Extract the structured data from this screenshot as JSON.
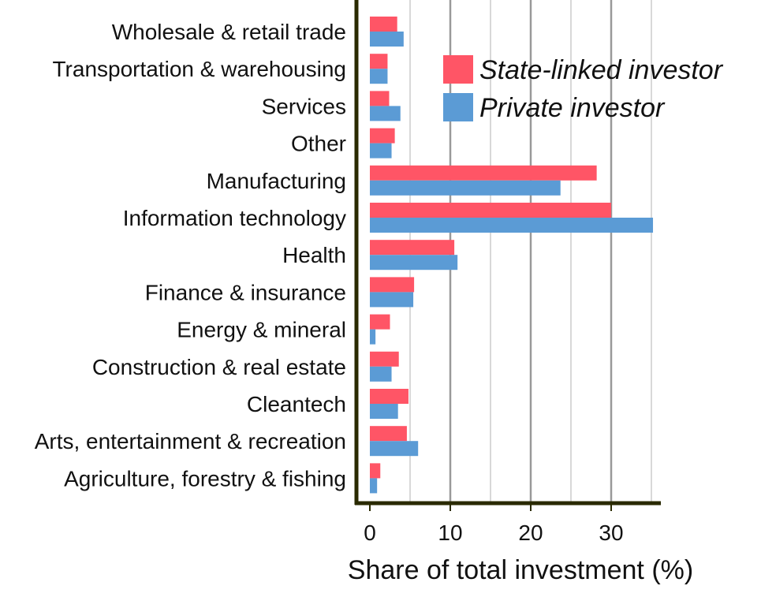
{
  "chart_data": {
    "type": "bar",
    "orientation": "horizontal",
    "title": "",
    "xlabel": "Share of total investment (%)",
    "ylabel": "",
    "xlim": [
      -1.5,
      36.5
    ],
    "xticks": [
      0,
      10,
      20,
      30
    ],
    "grid": true,
    "legend_position": "top-right",
    "categories": [
      "Wholesale & retail trade",
      "Transportation & warehousing",
      "Services",
      "Other",
      "Manufacturing",
      "Information technology",
      "Health",
      "Finance & insurance",
      "Energy & mineral",
      "Construction & real estate",
      "Cleantech",
      "Arts, entertainment & recreation",
      "Agriculture, forestry & fishing"
    ],
    "series": [
      {
        "name": "State-linked investor",
        "color": "#FF5566",
        "values": [
          3.4,
          2.2,
          2.4,
          3.1,
          28.2,
          30.0,
          10.5,
          5.5,
          2.5,
          3.6,
          4.8,
          4.6,
          1.3
        ]
      },
      {
        "name": "Private investor",
        "color": "#5B9BD5",
        "values": [
          4.2,
          2.2,
          3.8,
          2.7,
          23.7,
          35.2,
          10.9,
          5.4,
          0.7,
          2.7,
          3.5,
          6.0,
          0.9
        ]
      }
    ]
  }
}
